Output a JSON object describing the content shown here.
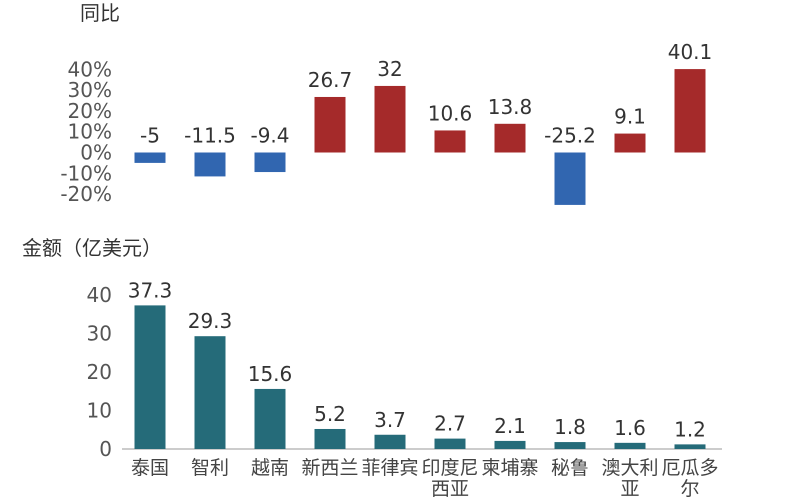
{
  "chart_data": [
    {
      "type": "bar",
      "title": "同比",
      "categories": [
        "泰国",
        "智利",
        "越南",
        "新西兰",
        "菲律宾",
        "印度尼西亚",
        "柬埔寨",
        "秘鲁",
        "澳大利亚",
        "厄瓜多尔"
      ],
      "values": [
        -5,
        -11.5,
        -9.4,
        26.7,
        32,
        10.6,
        13.8,
        -25.2,
        9.1,
        40.1
      ],
      "value_labels": [
        "-5",
        "-11.5",
        "-9.4",
        "26.7",
        "32",
        "10.6",
        "13.8",
        "-25.2",
        "9.1",
        "40.1"
      ],
      "yticks": [
        "40%",
        "30%",
        "20%",
        "10%",
        "0%",
        "-10%",
        "-20%"
      ],
      "ytick_values": [
        40,
        30,
        20,
        10,
        0,
        -10,
        -20
      ],
      "ylim": [
        -25,
        40
      ],
      "colors": {
        "positive": "#a52a2a",
        "negative": "#3166b0"
      }
    },
    {
      "type": "bar",
      "title": "金额（亿美元）",
      "categories": [
        "泰国",
        "智利",
        "越南",
        "新西兰",
        "菲律宾",
        "印度尼西亚",
        "柬埔寨",
        "秘鲁",
        "澳大利亚",
        "厄瓜多尔"
      ],
      "category_lines": [
        [
          "泰国"
        ],
        [
          "智利"
        ],
        [
          "越南"
        ],
        [
          "新西兰"
        ],
        [
          "菲律宾"
        ],
        [
          "印度尼",
          "西亚"
        ],
        [
          "柬埔寨"
        ],
        [
          "秘鲁"
        ],
        [
          "澳大利",
          "亚"
        ],
        [
          "厄瓜多",
          "尔"
        ]
      ],
      "values": [
        37.3,
        29.3,
        15.6,
        5.2,
        3.7,
        2.7,
        2.1,
        1.8,
        1.6,
        1.2
      ],
      "value_labels": [
        "37.3",
        "29.3",
        "15.6",
        "5.2",
        "3.7",
        "2.7",
        "2.1",
        "1.8",
        "1.6",
        "1.2"
      ],
      "yticks": [
        "40",
        "30",
        "20",
        "10",
        "0"
      ],
      "ytick_values": [
        40,
        30,
        20,
        10,
        0
      ],
      "ylim": [
        0,
        40
      ],
      "colors": {
        "bar": "#256b79"
      }
    }
  ]
}
